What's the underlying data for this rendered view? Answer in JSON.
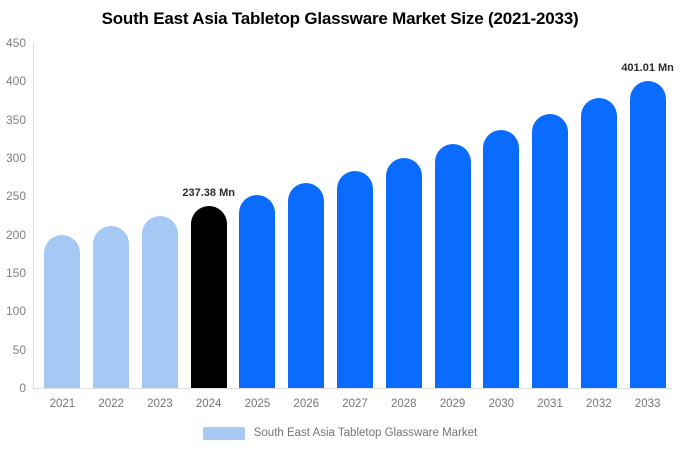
{
  "title": "South East Asia Tabletop Glassware Market Size (2021-2033)",
  "legend": {
    "label": "South East Asia Tabletop Glassware Market",
    "swatch_color": "#a5c9f4"
  },
  "colors": {
    "light_blue_bar": "#a5c9f4",
    "highlight_black_bar": "#000000",
    "blue_bar": "#0a6cff",
    "axis_text": "#808080",
    "axis_line": "#dddddd",
    "annotation_text": "#2b2b2b",
    "title_text": "#000000",
    "background": "#ffffff"
  },
  "chart_data": {
    "type": "bar",
    "title": "South East Asia Tabletop Glassware Market Size (2021-2033)",
    "xlabel": "",
    "ylabel": "",
    "ylim": [
      0,
      450
    ],
    "yticks": [
      0,
      50,
      100,
      150,
      200,
      250,
      300,
      350,
      400,
      450
    ],
    "grid": false,
    "legend_position": "bottom",
    "categories": [
      "2021",
      "2022",
      "2023",
      "2024",
      "2025",
      "2026",
      "2027",
      "2028",
      "2029",
      "2030",
      "2031",
      "2032",
      "2033"
    ],
    "values": [
      199,
      211,
      224,
      237.38,
      252,
      267,
      283,
      300,
      318,
      337,
      357,
      378,
      401.01
    ],
    "bar_colors": [
      "#a5c9f4",
      "#a5c9f4",
      "#a5c9f4",
      "#000000",
      "#0a6cff",
      "#0a6cff",
      "#0a6cff",
      "#0a6cff",
      "#0a6cff",
      "#0a6cff",
      "#0a6cff",
      "#0a6cff",
      "#0a6cff"
    ],
    "annotations": [
      {
        "category": "2024",
        "index": 3,
        "text": "237.38 Mn"
      },
      {
        "category": "2033",
        "index": 12,
        "text": "401.01 Mn"
      }
    ]
  }
}
